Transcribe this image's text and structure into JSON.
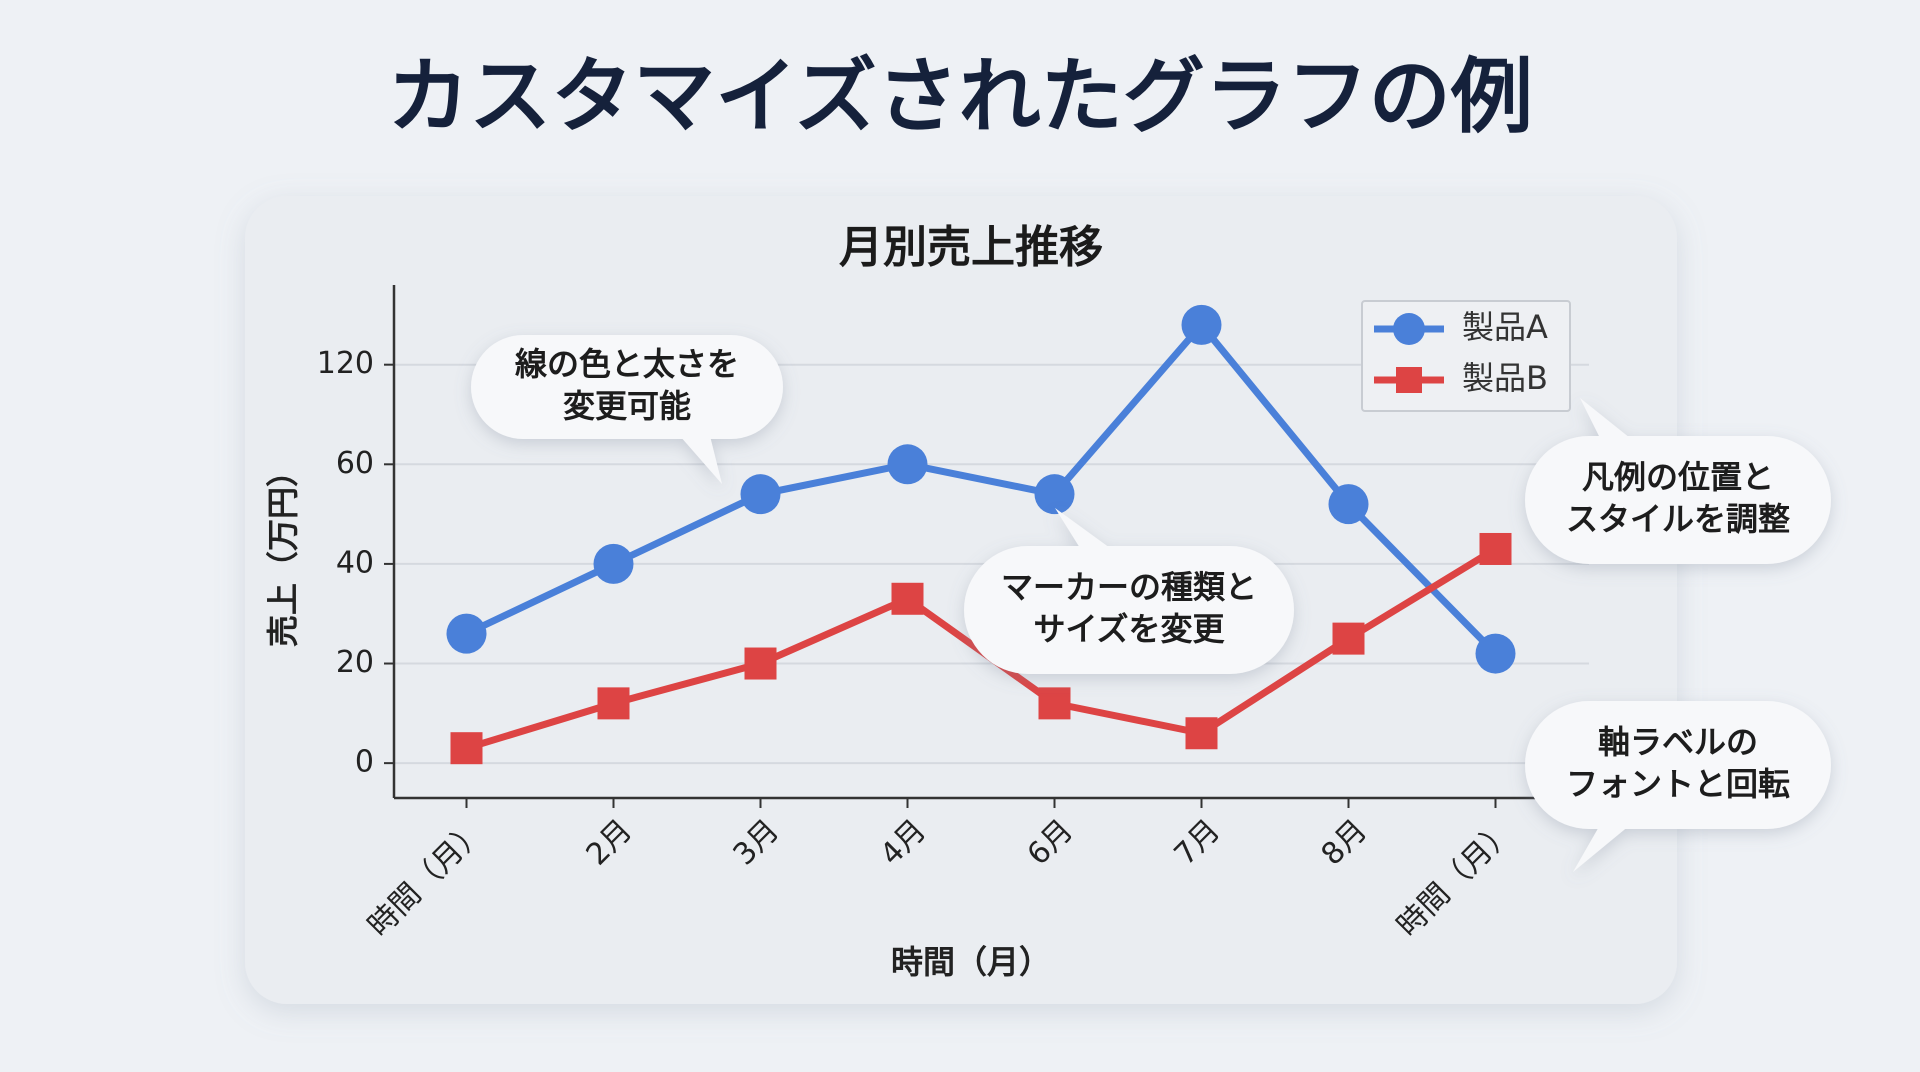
{
  "header": {
    "title": "カスタマイズされたグラフの例"
  },
  "chart_data": {
    "type": "line",
    "title": "月別売上推移",
    "x_label": "時間（月）",
    "y_label": "売上（万円）",
    "categories": [
      "時間（月）",
      "2月",
      "3月",
      "4月",
      "6月",
      "7月",
      "8月",
      "時間（月）"
    ],
    "series": [
      {
        "name": "製品A",
        "color": "#4a80d9",
        "marker": "circle",
        "values": [
          26,
          40,
          54,
          60,
          54,
          144,
          52,
          22
        ]
      },
      {
        "name": "製品B",
        "color": "#dd4444",
        "marker": "square",
        "values": [
          3,
          12,
          20,
          33,
          12,
          6,
          25,
          43
        ]
      }
    ],
    "ylim": [
      -7,
      168
    ],
    "yticks": [
      0,
      20,
      40,
      60,
      120
    ],
    "grid": true,
    "legend": "upper right"
  },
  "callouts": [
    {
      "lines": [
        "線の色と太さを",
        "変更可能"
      ]
    },
    {
      "lines": [
        "マーカーの種類と",
        "サイズを変更"
      ]
    },
    {
      "lines": [
        "凡例の位置と",
        "スタイルを調整"
      ]
    },
    {
      "lines": [
        "軸ラベルの",
        "フォントと回転"
      ]
    }
  ]
}
